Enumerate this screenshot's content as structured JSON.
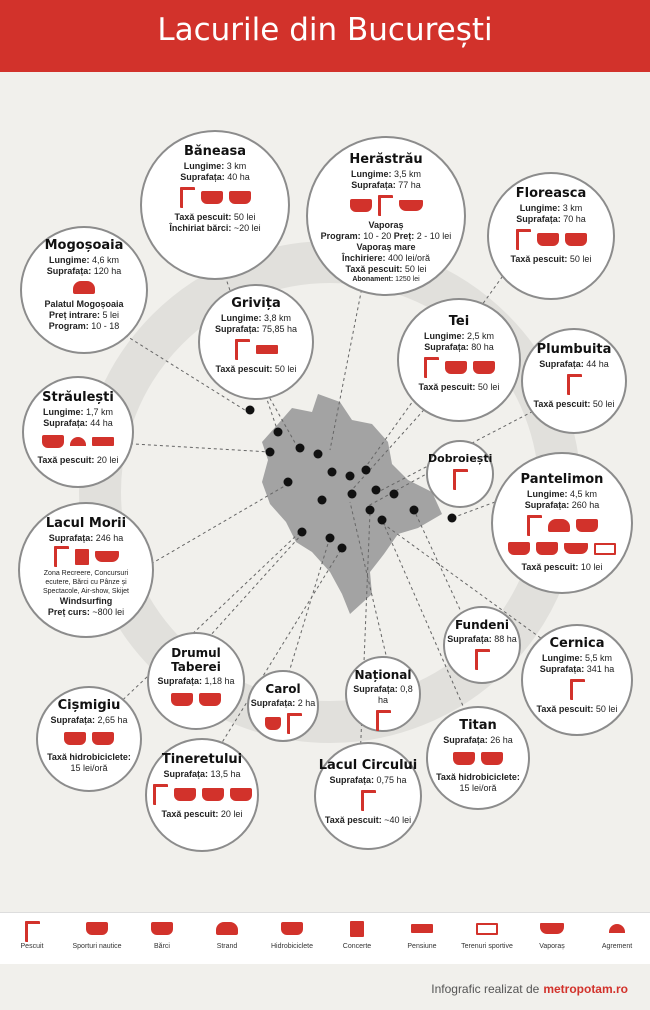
{
  "title": "Lacurile din București",
  "lakes": {
    "baneasa": {
      "name": "Băneasa",
      "lines": [
        {
          "k": "Lungime:",
          "v": "3 km"
        },
        {
          "k": "Suprafața:",
          "v": "40 ha"
        },
        {
          "k": "Taxă pescuit:",
          "v": "50 lei"
        },
        {
          "k": "Închiriat bărci:",
          "v": "~20 lei"
        }
      ]
    },
    "herastrau": {
      "name": "Herăstrău",
      "lines": [
        {
          "k": "Lungime:",
          "v": "3,5 km"
        },
        {
          "k": "Suprafața:",
          "v": "77 ha"
        },
        {
          "k": "Vaporaș",
          "v": ""
        },
        {
          "k": "Program:",
          "v": "10 - 20"
        },
        {
          "k": "Preț:",
          "v": "2 - 10 lei"
        },
        {
          "k": "Vaporaș mare",
          "v": ""
        },
        {
          "k": "Închiriere:",
          "v": "400 lei/oră"
        },
        {
          "k": "Taxă pescuit:",
          "v": "50 lei"
        },
        {
          "k": "Abonament:",
          "v": "1250 lei"
        }
      ]
    },
    "floreasca": {
      "name": "Floreasca",
      "lines": [
        {
          "k": "Lungime:",
          "v": "3 km"
        },
        {
          "k": "Suprafața:",
          "v": "70 ha"
        },
        {
          "k": "Taxă pescuit:",
          "v": "50 lei"
        }
      ]
    },
    "mogosoaia": {
      "name": "Mogoșoaia",
      "lines": [
        {
          "k": "Lungime:",
          "v": "4,6 km"
        },
        {
          "k": "Suprafața:",
          "v": "120 ha"
        },
        {
          "k": "Palatul Mogoșoaia",
          "v": ""
        },
        {
          "k": "Preț intrare:",
          "v": "5 lei"
        },
        {
          "k": "Program:",
          "v": "10 - 18"
        }
      ]
    },
    "grivita": {
      "name": "Grivița",
      "lines": [
        {
          "k": "Lungime:",
          "v": "3,8 km"
        },
        {
          "k": "Suprafața:",
          "v": "75,85 ha"
        },
        {
          "k": "Taxă pescuit:",
          "v": "50 lei"
        }
      ]
    },
    "tei": {
      "name": "Tei",
      "lines": [
        {
          "k": "Lungime:",
          "v": "2,5 km"
        },
        {
          "k": "Suprafața:",
          "v": "80 ha"
        },
        {
          "k": "Taxă pescuit:",
          "v": "50 lei"
        }
      ]
    },
    "plumbuita": {
      "name": "Plumbuita",
      "lines": [
        {
          "k": "Suprafața:",
          "v": "44 ha"
        },
        {
          "k": "Taxă pescuit:",
          "v": "50 lei"
        }
      ]
    },
    "straulesti": {
      "name": "Străulești",
      "lines": [
        {
          "k": "Lungime:",
          "v": "1,7 km"
        },
        {
          "k": "Suprafața:",
          "v": "44 ha"
        },
        {
          "k": "Taxă pescuit:",
          "v": "20 lei"
        }
      ]
    },
    "dobroiesti": {
      "name": "Dobroiești",
      "lines": []
    },
    "pantelimon": {
      "name": "Pantelimon",
      "lines": [
        {
          "k": "Lungime:",
          "v": "4,5 km"
        },
        {
          "k": "Suprafața:",
          "v": "260 ha"
        },
        {
          "k": "Taxă pescuit:",
          "v": "10 lei"
        }
      ]
    },
    "morii": {
      "name": "Lacul Morii",
      "lines": [
        {
          "k": "Suprafața:",
          "v": "246 ha"
        }
      ],
      "note": "Zona Recreere, Concursuri ecutere, Bărci cu Pânze și Spectacole, Air-show, Skijet",
      "extra": [
        {
          "k": "Windsurfing",
          "v": ""
        },
        {
          "k": "Preț curs:",
          "v": "~800 lei"
        }
      ]
    },
    "fundeni": {
      "name": "Fundeni",
      "lines": [
        {
          "k": "Suprafața:",
          "v": "88 ha"
        }
      ]
    },
    "cernica": {
      "name": "Cernica",
      "lines": [
        {
          "k": "Lungime:",
          "v": "5,5 km"
        },
        {
          "k": "Suprafața:",
          "v": "341 ha"
        },
        {
          "k": "Taxă pescuit:",
          "v": "50 lei"
        }
      ]
    },
    "drumul_taberei": {
      "name": "Drumul Taberei",
      "lines": [
        {
          "k": "Suprafața:",
          "v": "1,18 ha"
        }
      ]
    },
    "national": {
      "name": "Național",
      "lines": [
        {
          "k": "Suprafața:",
          "v": "0,8 ha"
        }
      ]
    },
    "carol": {
      "name": "Carol",
      "lines": [
        {
          "k": "Suprafața:",
          "v": "2 ha"
        }
      ]
    },
    "cismigiu": {
      "name": "Cișmigiu",
      "lines": [
        {
          "k": "Suprafața:",
          "v": "2,65 ha"
        },
        {
          "k": "Taxă hidrobiciclete:",
          "v": ""
        },
        {
          "k": "15 lei/oră",
          "v": ""
        }
      ]
    },
    "titan": {
      "name": "Titan",
      "lines": [
        {
          "k": "Suprafața:",
          "v": "26 ha"
        },
        {
          "k": "Taxă hidrobiciclete:",
          "v": ""
        },
        {
          "k": "15 lei/oră",
          "v": ""
        }
      ]
    },
    "tineretului": {
      "name": "Tineretului",
      "lines": [
        {
          "k": "Suprafața:",
          "v": "13,5 ha"
        },
        {
          "k": "Taxă pescuit:",
          "v": "20 lei"
        }
      ]
    },
    "circului": {
      "name": "Lacul Circului",
      "lines": [
        {
          "k": "Suprafața:",
          "v": "0,75 ha"
        },
        {
          "k": "Taxă pescuit:",
          "v": "~40 lei"
        }
      ]
    }
  },
  "legend": [
    {
      "label": "Pescuit",
      "icon": "fishing-rod-icon"
    },
    {
      "label": "Sporturi nautice",
      "icon": "jetski-icon"
    },
    {
      "label": "Bărci",
      "icon": "boat-icon"
    },
    {
      "label": "Strand",
      "icon": "swimmer-icon"
    },
    {
      "label": "Hidrobiciclete",
      "icon": "pedal-boat-icon"
    },
    {
      "label": "Concerte",
      "icon": "stage-icon"
    },
    {
      "label": "Pensiune",
      "icon": "bed-icon"
    },
    {
      "label": "Terenuri sportive",
      "icon": "sports-field-icon"
    },
    {
      "label": "Vaporaș",
      "icon": "ship-icon"
    },
    {
      "label": "Agrement",
      "icon": "umbrella-icon"
    }
  ],
  "credit": {
    "text": "Infografic realizat de",
    "brand": "metropotam.ro"
  },
  "colors": {
    "accent": "#d2322b",
    "background": "#f1f0ec",
    "map": "#a3a3a3"
  }
}
